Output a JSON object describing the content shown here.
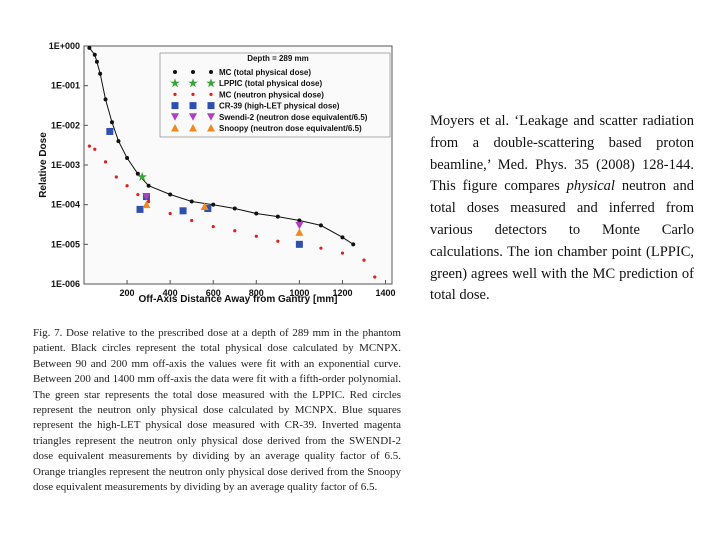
{
  "chart_data": {
    "type": "scatter",
    "annotation": "Depth = 289 mm",
    "x_label": "Off-Axis Distance Away from Gantry [mm]",
    "y_label": "Relative Dose",
    "xlim": [
      0,
      1430
    ],
    "ylim": [
      1e-06,
      1
    ],
    "log_y": true,
    "xticks": [
      200,
      400,
      600,
      800,
      1000,
      1200,
      1400
    ],
    "yticks": [
      {
        "value": 1,
        "label": "1E+000"
      },
      {
        "value": 0.1,
        "label": "1E-001"
      },
      {
        "value": 0.01,
        "label": "1E-002"
      },
      {
        "value": 0.001,
        "label": "1E-003"
      },
      {
        "value": 0.0001,
        "label": "1E-004"
      },
      {
        "value": 1e-05,
        "label": "1E-005"
      },
      {
        "value": 1e-06,
        "label": "1E-006"
      }
    ],
    "series": [
      {
        "name": "MC (total physical dose)",
        "color": "#111111",
        "marker": "circle",
        "line": true,
        "x": [
          25,
          50,
          60,
          75,
          100,
          130,
          160,
          200,
          250,
          300,
          400,
          500,
          600,
          700,
          800,
          900,
          1000,
          1100,
          1200,
          1250
        ],
        "values": [
          0.9,
          0.6,
          0.4,
          0.2,
          0.045,
          0.012,
          0.004,
          0.0015,
          0.0006,
          0.0003,
          0.00018,
          0.00012,
          0.0001,
          8e-05,
          6e-05,
          5e-05,
          4e-05,
          3e-05,
          1.5e-05,
          1e-05
        ]
      },
      {
        "name": "LPPIC (total physical dose)",
        "color": "#3aa53a",
        "marker": "star",
        "x": [
          270
        ],
        "values": [
          0.0005
        ]
      },
      {
        "name": "MC (neutron physical dose)",
        "color": "#e02020",
        "marker": "dot",
        "x": [
          25,
          50,
          100,
          150,
          200,
          250,
          300,
          400,
          500,
          600,
          700,
          800,
          900,
          1000,
          1100,
          1200,
          1300,
          1350
        ],
        "values": [
          0.003,
          0.0025,
          0.0012,
          0.0005,
          0.0003,
          0.00018,
          0.00012,
          6e-05,
          4e-05,
          2.8e-05,
          2.2e-05,
          1.6e-05,
          1.2e-05,
          1e-05,
          8e-06,
          6e-06,
          4e-06,
          1.5e-06
        ]
      },
      {
        "name": "CR-39 (high-LET physical dose)",
        "color": "#3050b0",
        "marker": "square",
        "x": [
          120,
          260,
          290,
          460,
          575,
          1000
        ],
        "values": [
          0.007,
          7.6e-05,
          0.00016,
          7e-05,
          8e-05,
          1e-05
        ]
      },
      {
        "name": "Swendi-2 (neutron dose equivalent/6.5)",
        "color": "#b040c0",
        "marker": "triangle-down",
        "x": [
          290,
          1000
        ],
        "values": [
          0.00016,
          3e-05
        ]
      },
      {
        "name": "Snoopy (neutron dose equivalent/6.5)",
        "color": "#f08a20",
        "marker": "triangle-up",
        "x": [
          290,
          560,
          1000
        ],
        "values": [
          0.0001,
          9e-05,
          2e-05
        ]
      }
    ]
  },
  "caption": "Fig. 7. Dose relative to the prescribed dose at a depth of 289 mm in the phantom patient. Black circles represent the total physical dose calculated by MCNPX. Between 90 and 200 mm off-axis the values were fit with an exponential curve. Between 200 and 1400 mm off-axis the data were fit with a fifth-order polynomial. The green star represents the total dose measured with the LPPIC. Red circles represent the neutron only physical dose calculated by MCNPX. Blue squares represent the high-LET physical dose measured with CR-39. Inverted magenta triangles represent the neutron only physical dose derived from the SWENDI-2 dose equivalent measurements by dividing by an average quality factor of 6.5. Orange triangles represent the neutron only physical dose derived from the Snoopy dose equivalent measurements by dividing by an average quality factor of 6.5.",
  "side_text": [
    "Moyers et al. ‘Leakage and scatter radiation from a double-scattering based proton beamline,’ Med. Phys. 35 (2008) 128-144. This figure compares ",
    "physical",
    " neutron and total doses measured and inferred from various detectors to Monte Carlo calculations. The ion chamber point (LPPIC, green) agrees well with the MC prediction of total dose."
  ]
}
